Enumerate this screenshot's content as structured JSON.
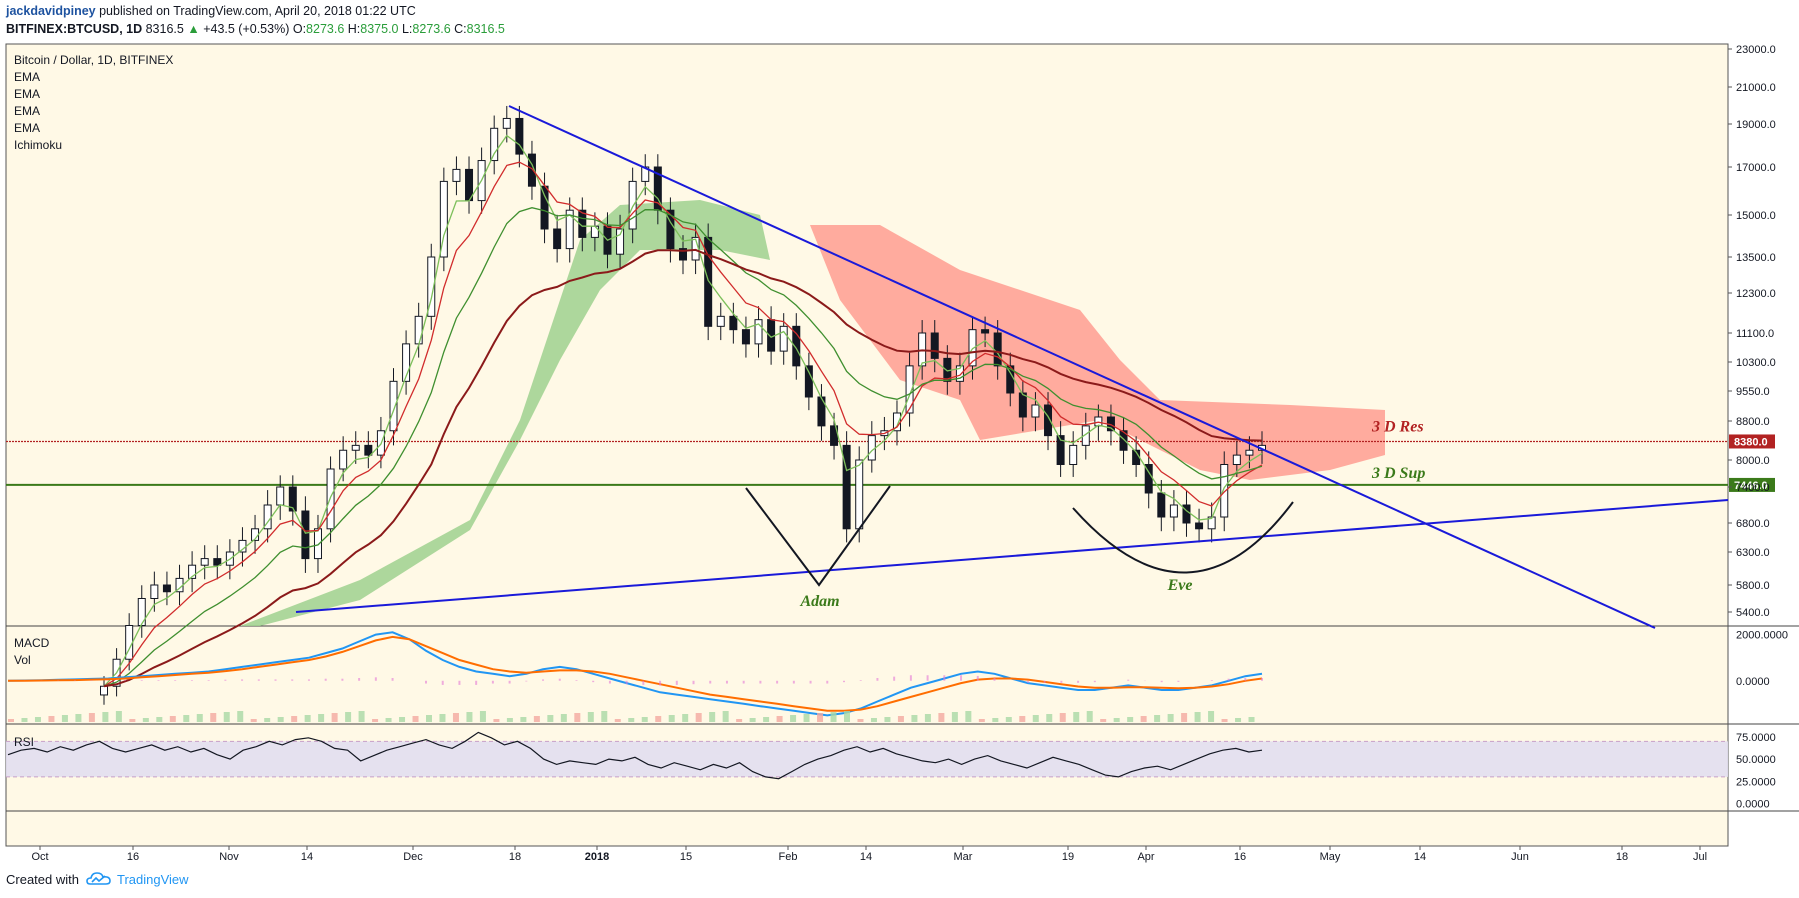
{
  "header": {
    "author": "jackdavidpiney",
    "published": "published on TradingView.com, April 20, 2018 01:22 UTC",
    "symbol": "BITFINEX:BTCUSD, 1D",
    "last": "8316.5",
    "change": "+43.5 (+0.53%)",
    "o_label": "O:",
    "o": "8273.6",
    "h_label": "H:",
    "h": "8375.0",
    "l_label": "L:",
    "l": "8273.6",
    "c_label": "C:",
    "c": "8316.5"
  },
  "legend": {
    "title": "Bitcoin / Dollar, 1D, BITFINEX",
    "studies": [
      "EMA",
      "EMA",
      "EMA",
      "EMA",
      "Ichimoku"
    ]
  },
  "footer": {
    "created": "Created with",
    "brand": "TradingView"
  },
  "colors": {
    "background": "#fff9e6",
    "up_candle": "#ffffff",
    "down_candle": "#131722",
    "trendline": "#1a1ad9",
    "resistance": "#b22222",
    "support": "#3b7a1a",
    "cloud_bull": "#9fd18e",
    "cloud_bear": "#ff9e90",
    "macd": "#2196f3",
    "signal": "#ff6d00"
  },
  "chart_data": [
    {
      "type": "candlestick",
      "title": "Bitcoin / Dollar, 1D, BITFINEX",
      "y_ticks": [
        23000,
        21000,
        19000,
        17000,
        15000,
        13500,
        12300,
        11100,
        10300,
        9550,
        8800,
        8000,
        7400,
        6800,
        6300,
        5800,
        5400
      ],
      "y_tick_labels": [
        "23000.0",
        "21000.0",
        "19000.0",
        "17000.0",
        "15000.0",
        "13500.0",
        "12300.0",
        "11100.0",
        "10300.0",
        "9550.0",
        "8800.0",
        "8000.0",
        "7400.0",
        "6800.0",
        "6300.0",
        "5800.0",
        "5400.0"
      ],
      "x_ticks": [
        "Oct",
        "16",
        "Nov",
        "14",
        "Dec",
        "18",
        "2018",
        "15",
        "Feb",
        "14",
        "Mar",
        "19",
        "Apr",
        "16",
        "May",
        "14",
        "Jun",
        "18",
        "Jul"
      ],
      "close_series": [
        4300,
        4700,
        5200,
        5600,
        5800,
        5700,
        5900,
        6100,
        6200,
        6100,
        6300,
        6500,
        6700,
        7100,
        7400,
        7000,
        6200,
        6700,
        7800,
        8200,
        8300,
        8100,
        8600,
        9800,
        10800,
        11600,
        13500,
        16400,
        16900,
        15600,
        17300,
        18800,
        19300,
        17600,
        16200,
        14500,
        13800,
        15200,
        14200,
        14600,
        13600,
        14500,
        16400,
        17000,
        15200,
        13800,
        13400,
        14200,
        11300,
        11600,
        11200,
        10800,
        11500,
        10600,
        11300,
        10200,
        9400,
        8700,
        8300,
        6700,
        8000,
        8500,
        8600,
        9000,
        10200,
        11100,
        10400,
        9800,
        10200,
        11200,
        11100,
        10200,
        9500,
        8900,
        9200,
        8500,
        7900,
        8300,
        8700,
        8900,
        8600,
        8200,
        7900,
        7300,
        6900,
        7100,
        6800,
        6700,
        6900,
        7900,
        8100,
        8200,
        8300
      ],
      "series": [
        {
          "name": "EMA"
        },
        {
          "name": "EMA"
        },
        {
          "name": "EMA"
        },
        {
          "name": "EMA"
        },
        {
          "name": "Ichimoku"
        }
      ],
      "trendlines": [
        {
          "from": [
            "Nov 11",
            5500
          ],
          "to": [
            "Dec 17",
            19800
          ],
          "note": ""
        },
        {
          "from": [
            "Dec 17",
            19800
          ],
          "to": [
            "Jun 20",
            5400
          ]
        },
        {
          "from": [
            "Nov 11",
            5500
          ],
          "to": [
            "Jul 1",
            7250
          ]
        }
      ],
      "levels": [
        {
          "name": "3 D Res",
          "value": 8380,
          "label": "8380.0"
        },
        {
          "name": "3 D Sup",
          "value": 7446,
          "label": "7446.0"
        }
      ],
      "annotations": [
        "Adam",
        "Eve",
        "3 D Res",
        "3 D Sup"
      ]
    },
    {
      "type": "line",
      "title": "MACD",
      "subtitle": "Vol",
      "y_ticks": [
        2000,
        0
      ],
      "y_tick_labels": [
        "2000.0000",
        "0.0000"
      ],
      "series": [
        {
          "values": [
            0,
            10,
            20,
            40,
            60,
            80,
            100,
            150,
            200,
            250,
            300,
            350,
            400,
            500,
            600,
            700,
            800,
            900,
            1000,
            1200,
            1400,
            1700,
            2000,
            2100,
            1800,
            1300,
            900,
            600,
            400,
            300,
            200,
            300,
            500,
            600,
            500,
            300,
            100,
            -100,
            -300,
            -500,
            -600,
            -700,
            -800,
            -900,
            -1000,
            -1100,
            -1200,
            -1300,
            -1400,
            -1500,
            -1400,
            -1200,
            -900,
            -600,
            -300,
            -100,
            100,
            300,
            400,
            300,
            100,
            -100,
            -200,
            -300,
            -400,
            -400,
            -300,
            -200,
            -300,
            -400,
            -400,
            -300,
            -200,
            0,
            200,
            300
          ]
        },
        {
          "values": [
            0,
            5,
            10,
            20,
            30,
            50,
            70,
            100,
            150,
            200,
            250,
            300,
            350,
            420,
            500,
            600,
            700,
            800,
            900,
            1050,
            1250,
            1500,
            1750,
            1900,
            1800,
            1500,
            1200,
            900,
            700,
            500,
            400,
            350,
            400,
            450,
            450,
            400,
            300,
            150,
            0,
            -150,
            -300,
            -450,
            -600,
            -700,
            -800,
            -900,
            -1000,
            -1100,
            -1200,
            -1300,
            -1300,
            -1250,
            -1100,
            -900,
            -700,
            -500,
            -300,
            -100,
            50,
            100,
            100,
            50,
            -50,
            -150,
            -250,
            -300,
            -300,
            -280,
            -280,
            -300,
            -320,
            -300,
            -250,
            -150,
            0,
            100
          ]
        }
      ]
    },
    {
      "type": "line",
      "title": "RSI",
      "y_ticks": [
        75,
        50,
        25,
        0
      ],
      "y_tick_labels": [
        "75.0000",
        "50.0000",
        "25.0000",
        "0.0000"
      ],
      "band": [
        30,
        70
      ],
      "series": [
        {
          "values": [
            55,
            60,
            62,
            58,
            64,
            60,
            66,
            70,
            62,
            58,
            62,
            66,
            60,
            64,
            58,
            62,
            55,
            50,
            60,
            64,
            70,
            66,
            72,
            74,
            70,
            62,
            60,
            48,
            54,
            60,
            64,
            68,
            72,
            66,
            62,
            70,
            80,
            74,
            66,
            70,
            62,
            50,
            44,
            48,
            46,
            44,
            50,
            48,
            52,
            44,
            40,
            46,
            42,
            38,
            44,
            40,
            46,
            36,
            30,
            28,
            36,
            44,
            50,
            54,
            60,
            64,
            58,
            62,
            56,
            52,
            48,
            46,
            50,
            44,
            50,
            54,
            48,
            44,
            40,
            46,
            52,
            48,
            44,
            38,
            32,
            30,
            36,
            40,
            42,
            38,
            44,
            50,
            56,
            60,
            62,
            58,
            60
          ]
        }
      ]
    }
  ]
}
